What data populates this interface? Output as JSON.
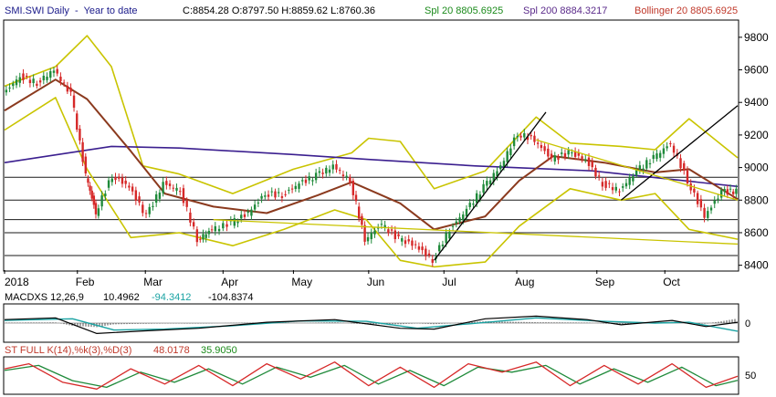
{
  "colors": {
    "background": "#ffffff",
    "frame": "#000000",
    "up_candle": "#1f8a3a",
    "down_candle": "#d62828",
    "spl20": "#8b3a1e",
    "spl200": "#3b1f8f",
    "bollinger": "#c9c400",
    "hline": "#1a1a1a",
    "trend": "#000000",
    "macd": "#000000",
    "macd_signal": "#1aa3a3",
    "stoch_k": "#d62828",
    "stoch_d": "#1f8a3a",
    "header_green": "#1a8a1a",
    "header_purple": "#5a2a8a",
    "header_red": "#c0392b",
    "header_blue": "#1a1a8a"
  },
  "header": {
    "title": "SMI.SWI Daily  -  Year to date",
    "ohlc": "C:8854.28 O:8797.50 H:8859.62 L:8760.36",
    "spl20": "Spl 20 8805.6925",
    "spl200": "Spl 200 8884.3217",
    "bollinger": "Bollinger 20 8805.6925"
  },
  "macd_label": {
    "name": "MACDXS 12,26,9",
    "v1": "10.4962",
    "v2": "-94.3412",
    "v3": "-104.8374",
    "axis_tick": "0"
  },
  "stoch_label": {
    "name": "ST FULL K(14),%k(3),%D(3)",
    "v1": "48.0178",
    "v2": "35.9050",
    "axis_tick": "50"
  },
  "chart_data": {
    "type": "candlestick",
    "title": "SMI.SWI Daily - Year to date",
    "year_label": "2018",
    "x_labels": [
      "2018",
      "Feb",
      "Mar",
      "Apr",
      "May",
      "Jun",
      "Jul",
      "Aug",
      "Sep",
      "Oct"
    ],
    "x_label_dates": [
      "2018-01-02",
      "2018-02-01",
      "2018-03-01",
      "2018-04-02",
      "2018-05-01",
      "2018-06-01",
      "2018-07-02",
      "2018-08-01",
      "2018-09-03",
      "2018-10-01"
    ],
    "x_range": [
      "2018-01-02",
      "2018-10-31"
    ],
    "y_ticks": [
      8400,
      8600,
      8800,
      9000,
      9200,
      9400,
      9600,
      9800
    ],
    "ylim": [
      8370,
      9900
    ],
    "horizontal_levels": [
      8460,
      8600,
      8680,
      8800,
      8940
    ],
    "close_points": [
      [
        "2018-01-02",
        9450
      ],
      [
        "2018-01-09",
        9560
      ],
      [
        "2018-01-16",
        9520
      ],
      [
        "2018-01-23",
        9600
      ],
      [
        "2018-01-30",
        9450
      ],
      [
        "2018-02-05",
        8950
      ],
      [
        "2018-02-09",
        8720
      ],
      [
        "2018-02-16",
        8950
      ],
      [
        "2018-02-23",
        8880
      ],
      [
        "2018-03-02",
        8700
      ],
      [
        "2018-03-09",
        8900
      ],
      [
        "2018-03-16",
        8860
      ],
      [
        "2018-03-23",
        8560
      ],
      [
        "2018-03-29",
        8620
      ],
      [
        "2018-04-06",
        8660
      ],
      [
        "2018-04-13",
        8720
      ],
      [
        "2018-04-20",
        8840
      ],
      [
        "2018-04-27",
        8830
      ],
      [
        "2018-05-04",
        8900
      ],
      [
        "2018-05-11",
        8950
      ],
      [
        "2018-05-18",
        9010
      ],
      [
        "2018-05-25",
        8920
      ],
      [
        "2018-05-31",
        8560
      ],
      [
        "2018-06-07",
        8650
      ],
      [
        "2018-06-14",
        8560
      ],
      [
        "2018-06-21",
        8520
      ],
      [
        "2018-06-28",
        8430
      ],
      [
        "2018-07-05",
        8620
      ],
      [
        "2018-07-12",
        8740
      ],
      [
        "2018-07-19",
        8880
      ],
      [
        "2018-07-26",
        9010
      ],
      [
        "2018-08-02",
        9210
      ],
      [
        "2018-08-09",
        9170
      ],
      [
        "2018-08-16",
        9050
      ],
      [
        "2018-08-23",
        9090
      ],
      [
        "2018-08-30",
        9050
      ],
      [
        "2018-09-06",
        8900
      ],
      [
        "2018-09-13",
        8860
      ],
      [
        "2018-09-20",
        8980
      ],
      [
        "2018-09-27",
        9060
      ],
      [
        "2018-10-04",
        9150
      ],
      [
        "2018-10-11",
        8920
      ],
      [
        "2018-10-18",
        8700
      ],
      [
        "2018-10-25",
        8850
      ],
      [
        "2018-10-31",
        8854
      ]
    ],
    "spl20_points": [
      [
        "2018-01-02",
        9350
      ],
      [
        "2018-01-23",
        9540
      ],
      [
        "2018-02-05",
        9420
      ],
      [
        "2018-02-23",
        9100
      ],
      [
        "2018-03-09",
        8840
      ],
      [
        "2018-03-29",
        8760
      ],
      [
        "2018-04-20",
        8720
      ],
      [
        "2018-05-11",
        8830
      ],
      [
        "2018-05-25",
        8910
      ],
      [
        "2018-06-14",
        8780
      ],
      [
        "2018-06-28",
        8620
      ],
      [
        "2018-07-19",
        8700
      ],
      [
        "2018-08-02",
        8920
      ],
      [
        "2018-08-16",
        9070
      ],
      [
        "2018-09-06",
        9030
      ],
      [
        "2018-09-27",
        8970
      ],
      [
        "2018-10-11",
        8990
      ],
      [
        "2018-10-31",
        8806
      ]
    ],
    "spl200_points": [
      [
        "2018-01-02",
        9030
      ],
      [
        "2018-02-15",
        9130
      ],
      [
        "2018-03-15",
        9120
      ],
      [
        "2018-05-01",
        9080
      ],
      [
        "2018-06-01",
        9050
      ],
      [
        "2018-07-15",
        9010
      ],
      [
        "2018-09-01",
        8980
      ],
      [
        "2018-10-31",
        8884
      ]
    ],
    "bollinger_upper": [
      [
        "2018-01-02",
        9500
      ],
      [
        "2018-01-23",
        9620
      ],
      [
        "2018-02-05",
        9810
      ],
      [
        "2018-02-15",
        9620
      ],
      [
        "2018-02-28",
        9010
      ],
      [
        "2018-03-15",
        8960
      ],
      [
        "2018-04-06",
        8840
      ],
      [
        "2018-05-01",
        8990
      ],
      [
        "2018-05-25",
        9090
      ],
      [
        "2018-06-01",
        9180
      ],
      [
        "2018-06-14",
        9160
      ],
      [
        "2018-06-28",
        8870
      ],
      [
        "2018-07-19",
        8980
      ],
      [
        "2018-08-09",
        9310
      ],
      [
        "2018-08-23",
        9150
      ],
      [
        "2018-09-13",
        9130
      ],
      [
        "2018-09-27",
        9110
      ],
      [
        "2018-10-11",
        9300
      ],
      [
        "2018-10-31",
        9060
      ]
    ],
    "bollinger_lower": [
      [
        "2018-01-02",
        9230
      ],
      [
        "2018-01-23",
        9430
      ],
      [
        "2018-02-05",
        8990
      ],
      [
        "2018-02-23",
        8570
      ],
      [
        "2018-03-15",
        8600
      ],
      [
        "2018-04-06",
        8520
      ],
      [
        "2018-04-27",
        8620
      ],
      [
        "2018-05-18",
        8740
      ],
      [
        "2018-05-31",
        8680
      ],
      [
        "2018-06-14",
        8430
      ],
      [
        "2018-06-28",
        8390
      ],
      [
        "2018-07-19",
        8420
      ],
      [
        "2018-08-02",
        8640
      ],
      [
        "2018-08-23",
        8870
      ],
      [
        "2018-09-13",
        8800
      ],
      [
        "2018-09-27",
        8840
      ],
      [
        "2018-10-11",
        8620
      ],
      [
        "2018-10-31",
        8560
      ]
    ],
    "trendlines": [
      [
        [
          "2018-06-28",
          8430
        ],
        [
          "2018-08-13",
          9340
        ]
      ],
      [
        [
          "2018-09-13",
          8800
        ],
        [
          "2018-10-31",
          9380
        ]
      ],
      [
        [
          "2018-08-09",
          9170
        ],
        [
          "2018-10-31",
          8800
        ]
      ],
      [
        [
          "2018-03-29",
          8680
        ],
        [
          "2018-10-31",
          8530
        ]
      ]
    ],
    "macd": {
      "ylim": [
        -200,
        200
      ],
      "zero": 0,
      "macd": [
        [
          "2018-01-02",
          40
        ],
        [
          "2018-01-23",
          60
        ],
        [
          "2018-02-09",
          -120
        ],
        [
          "2018-02-28",
          -90
        ],
        [
          "2018-03-23",
          -60
        ],
        [
          "2018-04-20",
          10
        ],
        [
          "2018-05-18",
          40
        ],
        [
          "2018-06-14",
          -60
        ],
        [
          "2018-06-28",
          -70
        ],
        [
          "2018-07-19",
          50
        ],
        [
          "2018-08-09",
          80
        ],
        [
          "2018-08-30",
          40
        ],
        [
          "2018-09-13",
          -20
        ],
        [
          "2018-10-04",
          30
        ],
        [
          "2018-10-18",
          -40
        ],
        [
          "2018-10-31",
          10
        ]
      ],
      "signal": [
        [
          "2018-01-02",
          30
        ],
        [
          "2018-01-30",
          50
        ],
        [
          "2018-02-16",
          -80
        ],
        [
          "2018-03-09",
          -70
        ],
        [
          "2018-04-06",
          -30
        ],
        [
          "2018-05-04",
          25
        ],
        [
          "2018-05-31",
          20
        ],
        [
          "2018-06-21",
          -60
        ],
        [
          "2018-07-12",
          -10
        ],
        [
          "2018-08-09",
          60
        ],
        [
          "2018-09-06",
          20
        ],
        [
          "2018-09-27",
          0
        ],
        [
          "2018-10-11",
          10
        ],
        [
          "2018-10-31",
          -94
        ]
      ]
    },
    "stochastic": {
      "ylim": [
        0,
        100
      ],
      "k": [
        [
          "2018-01-02",
          70
        ],
        [
          "2018-01-12",
          85
        ],
        [
          "2018-01-26",
          30
        ],
        [
          "2018-02-09",
          10
        ],
        [
          "2018-02-23",
          70
        ],
        [
          "2018-03-09",
          25
        ],
        [
          "2018-03-23",
          80
        ],
        [
          "2018-04-06",
          20
        ],
        [
          "2018-04-20",
          85
        ],
        [
          "2018-05-04",
          40
        ],
        [
          "2018-05-18",
          90
        ],
        [
          "2018-06-01",
          20
        ],
        [
          "2018-06-14",
          75
        ],
        [
          "2018-06-28",
          15
        ],
        [
          "2018-07-12",
          85
        ],
        [
          "2018-07-26",
          60
        ],
        [
          "2018-08-09",
          90
        ],
        [
          "2018-08-23",
          20
        ],
        [
          "2018-09-06",
          80
        ],
        [
          "2018-09-20",
          25
        ],
        [
          "2018-10-04",
          85
        ],
        [
          "2018-10-18",
          15
        ],
        [
          "2018-10-31",
          48
        ]
      ],
      "d": [
        [
          "2018-01-02",
          65
        ],
        [
          "2018-01-16",
          80
        ],
        [
          "2018-01-30",
          35
        ],
        [
          "2018-02-13",
          15
        ],
        [
          "2018-02-27",
          60
        ],
        [
          "2018-03-13",
          30
        ],
        [
          "2018-03-27",
          70
        ],
        [
          "2018-04-10",
          25
        ],
        [
          "2018-04-24",
          75
        ],
        [
          "2018-05-08",
          45
        ],
        [
          "2018-05-22",
          80
        ],
        [
          "2018-06-05",
          25
        ],
        [
          "2018-06-18",
          65
        ],
        [
          "2018-07-02",
          20
        ],
        [
          "2018-07-16",
          75
        ],
        [
          "2018-07-30",
          60
        ],
        [
          "2018-08-13",
          80
        ],
        [
          "2018-08-27",
          25
        ],
        [
          "2018-09-10",
          70
        ],
        [
          "2018-09-24",
          30
        ],
        [
          "2018-10-08",
          75
        ],
        [
          "2018-10-22",
          20
        ],
        [
          "2018-10-31",
          36
        ]
      ]
    }
  }
}
